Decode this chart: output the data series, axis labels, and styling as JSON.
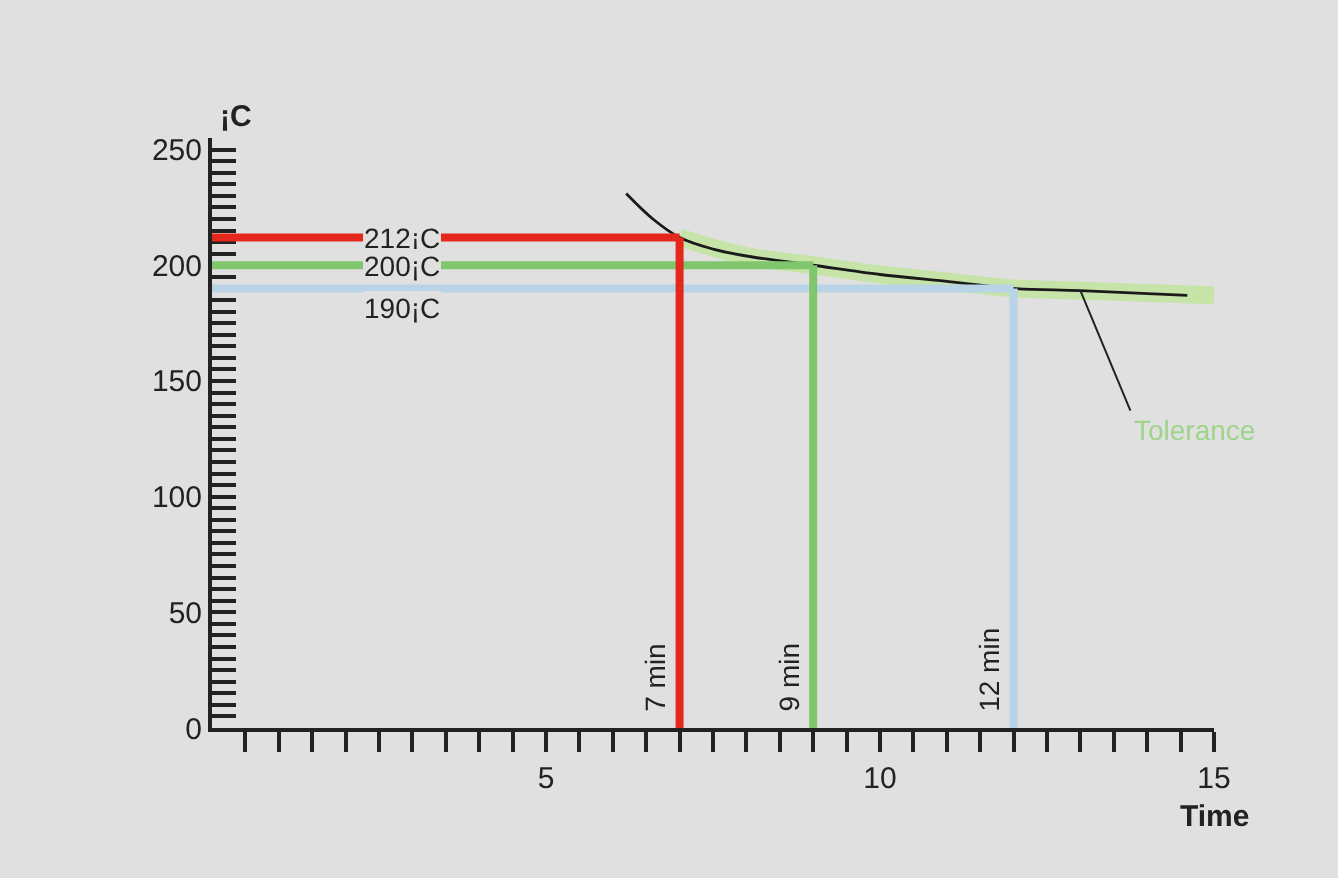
{
  "chart_data": {
    "type": "line",
    "xlabel": "Time",
    "ylabel": "¡C",
    "xlim": [
      0,
      15
    ],
    "ylim": [
      0,
      255
    ],
    "xticks": [
      {
        "value": 0.5,
        "label": null
      },
      {
        "value": 1,
        "label": null
      },
      {
        "value": 1.5,
        "label": null
      },
      {
        "value": 2,
        "label": null
      },
      {
        "value": 2.5,
        "label": null
      },
      {
        "value": 3,
        "label": null
      },
      {
        "value": 3.5,
        "label": null
      },
      {
        "value": 4,
        "label": null
      },
      {
        "value": 4.5,
        "label": null
      },
      5,
      {
        "value": 5.5,
        "label": null
      },
      {
        "value": 6,
        "label": null
      },
      {
        "value": 6.5,
        "label": null
      },
      {
        "value": 7,
        "label": null
      },
      {
        "value": 7.5,
        "label": null
      },
      {
        "value": 8,
        "label": null
      },
      {
        "value": 8.5,
        "label": null
      },
      {
        "value": 9,
        "label": null
      },
      {
        "value": 9.5,
        "label": null
      },
      10,
      {
        "value": 10.5,
        "label": null
      },
      {
        "value": 11,
        "label": null
      },
      {
        "value": 11.5,
        "label": null
      },
      {
        "value": 12,
        "label": null
      },
      {
        "value": 12.5,
        "label": null
      },
      {
        "value": 13,
        "label": null
      },
      {
        "value": 13.5,
        "label": null
      },
      {
        "value": 14,
        "label": null
      },
      {
        "value": 14.5,
        "label": null
      },
      15
    ],
    "yticks": [
      0,
      {
        "value": 5,
        "label": null
      },
      {
        "value": 10,
        "label": null
      },
      {
        "value": 15,
        "label": null
      },
      {
        "value": 20,
        "label": null
      },
      {
        "value": 25,
        "label": null
      },
      {
        "value": 30,
        "label": null
      },
      {
        "value": 35,
        "label": null
      },
      {
        "value": 40,
        "label": null
      },
      {
        "value": 45,
        "label": null
      },
      50,
      {
        "value": 55,
        "label": null
      },
      {
        "value": 60,
        "label": null
      },
      {
        "value": 65,
        "label": null
      },
      {
        "value": 70,
        "label": null
      },
      {
        "value": 75,
        "label": null
      },
      {
        "value": 80,
        "label": null
      },
      {
        "value": 85,
        "label": null
      },
      {
        "value": 90,
        "label": null
      },
      {
        "value": 95,
        "label": null
      },
      100,
      {
        "value": 105,
        "label": null
      },
      {
        "value": 110,
        "label": null
      },
      {
        "value": 115,
        "label": null
      },
      {
        "value": 120,
        "label": null
      },
      {
        "value": 125,
        "label": null
      },
      {
        "value": 130,
        "label": null
      },
      {
        "value": 135,
        "label": null
      },
      {
        "value": 140,
        "label": null
      },
      {
        "value": 145,
        "label": null
      },
      150,
      {
        "value": 155,
        "label": null
      },
      {
        "value": 160,
        "label": null
      },
      {
        "value": 165,
        "label": null
      },
      {
        "value": 170,
        "label": null
      },
      {
        "value": 175,
        "label": null
      },
      {
        "value": 180,
        "label": null
      },
      {
        "value": 185,
        "label": null
      },
      {
        "value": 190,
        "label": null
      },
      {
        "value": 195,
        "label": null
      },
      200,
      {
        "value": 205,
        "label": null
      },
      {
        "value": 210,
        "label": null
      },
      {
        "value": 215,
        "label": null
      },
      {
        "value": 220,
        "label": null
      },
      {
        "value": 225,
        "label": null
      },
      {
        "value": 230,
        "label": null
      },
      {
        "value": 235,
        "label": null
      },
      {
        "value": 240,
        "label": null
      },
      {
        "value": 245,
        "label": null
      },
      250
    ],
    "series": [
      {
        "name": "Tolerance",
        "color": "#c6e4a8",
        "x": [
          7,
          8,
          9,
          10,
          11,
          12,
          13,
          14,
          15
        ],
        "values": [
          212,
          204,
          200,
          196,
          193,
          190,
          189,
          188,
          187
        ]
      },
      {
        "color": "#1a1a1a",
        "x": [
          6.2,
          6.6,
          7,
          7.5,
          8,
          9,
          10,
          11,
          12,
          13,
          14.6
        ],
        "values": [
          231,
          220,
          212,
          207,
          204,
          200,
          196,
          193,
          190,
          189,
          187
        ]
      }
    ],
    "ref_lines": [
      {
        "axis": "y",
        "value": 212,
        "label": "212¡C",
        "color": "#e5281c"
      },
      {
        "axis": "y",
        "value": 200,
        "label": "200¡C",
        "color": "#80c66c"
      },
      {
        "axis": "y",
        "value": 190,
        "label": "190¡C",
        "color": "#b8d4e6"
      },
      {
        "axis": "x",
        "value": 7,
        "label": "7 min",
        "color": "#e5281c"
      },
      {
        "axis": "x",
        "value": 9,
        "label": "9 min",
        "color": "#80c66c"
      },
      {
        "axis": "x",
        "value": 12,
        "label": "12 min",
        "color": "#b8d4e6"
      }
    ],
    "grid": false,
    "marker": "none",
    "line_style": "solid"
  }
}
